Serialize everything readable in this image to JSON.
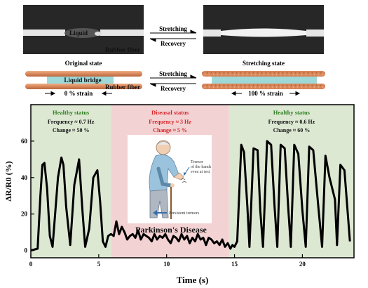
{
  "top_panel": {
    "label_liquid": "Liquid",
    "label_rubber_fiber_1": "Rubber fiber",
    "label_stretching_1": "Stretching",
    "label_recovery_1": "Recovery",
    "label_original_state": "Original state",
    "label_stretching_state": "Stretching state",
    "label_liquid_bridge": "Liquid bridge",
    "label_rubber_fiber_2": "Rubber fiber",
    "label_stretching_2": "Stretching",
    "label_recovery_2": "Recovery",
    "label_strain_0": "0 % strain",
    "label_strain_100": "100 % strain"
  },
  "colors": {
    "healthy_bg": "#dde8d3",
    "disease_bg": "#f3d2d3",
    "healthy_text": "#2e7d1f",
    "disease_text": "#d4262a",
    "fiber": "#d9875a",
    "liquid": "#9ed8d8",
    "trace": "#000000"
  },
  "illustration": {
    "label_tremor": "Tremor of the hands even at rest",
    "label_persistent": "Persistent tremors",
    "label_disease": "Parkinson's Disease",
    "icon": "elderly-person-with-cane-icon"
  },
  "chart_data": {
    "type": "line",
    "xlabel": "Time (s)",
    "ylabel": "ΔR/R0 (%)",
    "xlim": [
      0,
      23.8
    ],
    "ylim": [
      -4,
      80
    ],
    "xticks": [
      0,
      5,
      10,
      15,
      20
    ],
    "yticks": [
      0,
      20,
      40,
      60
    ],
    "regions": [
      {
        "kind": "healthy",
        "x": [
          0,
          5.9
        ],
        "title": "Healthy status",
        "line1": "Frequency ≈ 0.7 Hz",
        "line2": "Change ≈ 50 %"
      },
      {
        "kind": "disease",
        "x": [
          5.9,
          14.6
        ],
        "title": "Diseasal status",
        "line1": "Frequency ≈ 3 Hz",
        "line2": "Change ≈ 5 %"
      },
      {
        "kind": "healthy",
        "x": [
          14.6,
          23.8
        ],
        "title": "Healthy status",
        "line1": "Frequency ≈ 0.6 Hz",
        "line2": "Change ≈ 60 %"
      }
    ],
    "series": [
      {
        "x": [
          0.0,
          0.5,
          0.7,
          0.85,
          1.0,
          1.2,
          1.4,
          1.6,
          2.0,
          2.25,
          2.4,
          2.6,
          2.9,
          3.2,
          3.55,
          3.8,
          4.0,
          4.3,
          4.6,
          4.9,
          5.1,
          5.3,
          5.5,
          5.7,
          5.9,
          6.1,
          6.3,
          6.5,
          6.7,
          6.9,
          7.1,
          7.3,
          7.5,
          7.7,
          7.9,
          8.1,
          8.3,
          8.5,
          8.7,
          8.9,
          9.1,
          9.3,
          9.5,
          9.7,
          9.9,
          10.1,
          10.3,
          10.5,
          10.7,
          10.9,
          11.1,
          11.3,
          11.5,
          11.7,
          11.9,
          12.1,
          12.3,
          12.5,
          12.7,
          12.9,
          13.1,
          13.3,
          13.5,
          13.7,
          13.9,
          14.1,
          14.3,
          14.5,
          14.7,
          14.85,
          15.0,
          15.2,
          15.5,
          15.7,
          15.95,
          16.1,
          16.4,
          16.7,
          16.9,
          17.1,
          17.4,
          17.7,
          17.95,
          18.15,
          18.4,
          18.7,
          18.95,
          19.15,
          19.4,
          19.7,
          20.0,
          20.25,
          20.5,
          20.8,
          21.2,
          21.45,
          21.7,
          22.0,
          22.4,
          22.55,
          22.8,
          23.1,
          23.5
        ],
        "y": [
          0,
          1,
          30,
          47,
          48,
          34,
          8,
          2,
          40,
          51,
          47,
          24,
          3,
          36,
          50,
          22,
          2,
          12,
          40,
          44,
          27,
          5,
          2,
          8,
          9,
          8,
          16,
          9,
          13,
          10,
          6,
          8,
          9,
          7,
          11,
          6,
          9,
          8,
          7,
          5,
          9,
          6,
          8,
          7,
          9,
          6,
          4,
          8,
          7,
          5,
          9,
          6,
          8,
          4,
          7,
          5,
          9,
          6,
          7,
          3,
          7,
          6,
          4,
          5,
          3,
          6,
          2,
          4,
          1,
          3,
          2,
          5,
          58,
          54,
          24,
          2,
          56,
          55,
          22,
          2,
          60,
          58,
          24,
          2,
          58,
          56,
          24,
          2,
          58,
          53,
          22,
          2,
          57,
          55,
          22,
          2,
          52,
          40,
          28,
          3,
          47,
          44,
          5
        ]
      }
    ]
  }
}
